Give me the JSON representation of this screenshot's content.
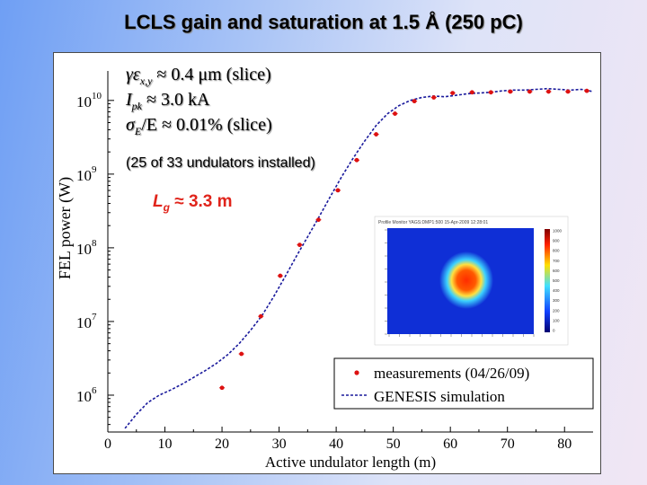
{
  "slide": {
    "title": "LCLS gain and saturation at 1.5 Å (250 pC)"
  },
  "chart_data": {
    "type": "scatter",
    "title": "LCLS gain and saturation at 1.5 Å (250 pC)",
    "xlabel": "Active undulator length (m)",
    "ylabel": "FEL power (W)",
    "xlim": [
      0,
      85
    ],
    "ylim_log10": [
      5.5,
      10.4
    ],
    "yscale": "log",
    "x_ticks": [
      "0",
      "10",
      "20",
      "30",
      "40",
      "50",
      "60",
      "70",
      "80"
    ],
    "y_ticks": [
      {
        "base": "10",
        "exp": "6"
      },
      {
        "base": "10",
        "exp": "7"
      },
      {
        "base": "10",
        "exp": "8"
      },
      {
        "base": "10",
        "exp": "9"
      },
      {
        "base": "10",
        "exp": "10"
      }
    ],
    "series": [
      {
        "name": "measurements (04/26/09)",
        "kind": "points",
        "color": "#dd1111",
        "points": [
          {
            "x": 20.0,
            "log10y": 6.1
          },
          {
            "x": 23.4,
            "log10y": 6.56
          },
          {
            "x": 26.8,
            "log10y": 7.07
          },
          {
            "x": 30.2,
            "log10y": 7.62
          },
          {
            "x": 33.6,
            "log10y": 8.04
          },
          {
            "x": 36.9,
            "log10y": 8.38
          },
          {
            "x": 40.3,
            "log10y": 8.78
          },
          {
            "x": 43.6,
            "log10y": 9.19
          },
          {
            "x": 47.0,
            "log10y": 9.54
          },
          {
            "x": 50.3,
            "log10y": 9.82
          },
          {
            "x": 53.7,
            "log10y": 9.99
          },
          {
            "x": 57.1,
            "log10y": 10.04
          },
          {
            "x": 60.4,
            "log10y": 10.1
          },
          {
            "x": 63.8,
            "log10y": 10.11
          },
          {
            "x": 67.1,
            "log10y": 10.11
          },
          {
            "x": 70.5,
            "log10y": 10.12
          },
          {
            "x": 73.9,
            "log10y": 10.12
          },
          {
            "x": 77.2,
            "log10y": 10.12
          },
          {
            "x": 80.6,
            "log10y": 10.12
          },
          {
            "x": 83.9,
            "log10y": 10.13
          }
        ]
      },
      {
        "name": "GENESIS simulation",
        "kind": "dashed-line",
        "color": "#1a1a9c",
        "points": [
          {
            "x": 3.0,
            "log10y": 5.55
          },
          {
            "x": 5.0,
            "log10y": 5.74
          },
          {
            "x": 7.0,
            "log10y": 5.9
          },
          {
            "x": 9.0,
            "log10y": 6.0
          },
          {
            "x": 11.0,
            "log10y": 6.07
          },
          {
            "x": 13.0,
            "log10y": 6.15
          },
          {
            "x": 15.0,
            "log10y": 6.24
          },
          {
            "x": 17.0,
            "log10y": 6.33
          },
          {
            "x": 19.0,
            "log10y": 6.43
          },
          {
            "x": 21.0,
            "log10y": 6.55
          },
          {
            "x": 23.0,
            "log10y": 6.7
          },
          {
            "x": 25.0,
            "log10y": 6.88
          },
          {
            "x": 27.0,
            "log10y": 7.08
          },
          {
            "x": 29.0,
            "log10y": 7.33
          },
          {
            "x": 31.0,
            "log10y": 7.6
          },
          {
            "x": 33.0,
            "log10y": 7.88
          },
          {
            "x": 35.0,
            "log10y": 8.15
          },
          {
            "x": 37.0,
            "log10y": 8.42
          },
          {
            "x": 39.0,
            "log10y": 8.7
          },
          {
            "x": 41.0,
            "log10y": 8.97
          },
          {
            "x": 43.0,
            "log10y": 9.22
          },
          {
            "x": 45.0,
            "log10y": 9.45
          },
          {
            "x": 47.0,
            "log10y": 9.66
          },
          {
            "x": 49.0,
            "log10y": 9.82
          },
          {
            "x": 51.0,
            "log10y": 9.93
          },
          {
            "x": 53.0,
            "log10y": 10.0
          },
          {
            "x": 55.0,
            "log10y": 10.04
          },
          {
            "x": 57.0,
            "log10y": 10.06
          },
          {
            "x": 59.0,
            "log10y": 10.05
          },
          {
            "x": 61.0,
            "log10y": 10.07
          },
          {
            "x": 63.0,
            "log10y": 10.09
          },
          {
            "x": 65.0,
            "log10y": 10.1
          },
          {
            "x": 67.0,
            "log10y": 10.11
          },
          {
            "x": 69.0,
            "log10y": 10.13
          },
          {
            "x": 71.0,
            "log10y": 10.14
          },
          {
            "x": 73.0,
            "log10y": 10.14
          },
          {
            "x": 75.0,
            "log10y": 10.15
          },
          {
            "x": 77.0,
            "log10y": 10.16
          },
          {
            "x": 79.0,
            "log10y": 10.15
          },
          {
            "x": 81.0,
            "log10y": 10.14
          },
          {
            "x": 83.0,
            "log10y": 10.15
          },
          {
            "x": 85.0,
            "log10y": 10.12
          }
        ]
      }
    ],
    "legend": {
      "placement": "bottom-right",
      "entries": [
        "measurements (04/26/09)",
        "GENESIS simulation"
      ]
    },
    "annotations": {
      "params": [
        {
          "sym": "γε",
          "sub": "x,y",
          "rest": " ≈ 0.4 μm (slice)"
        },
        {
          "sym": "I",
          "sub": "pk",
          "rest": " ≈ 3.0 kA"
        },
        {
          "sym": "σ",
          "sub": "E",
          "rest": "/E ≈ 0.01% (slice)"
        }
      ],
      "undulators_note": "(25 of 33 undulators installed)",
      "gain_length": {
        "sym": "L",
        "sub": "g",
        "rest": " ≈ 3.3 m"
      }
    },
    "inset": {
      "title": "Profile Monitor YAGS:DMP1:500 15-Apr-2009 12:28:01",
      "colorbar_ticks": [
        "1000",
        "900",
        "800",
        "700",
        "600",
        "500",
        "400",
        "300",
        "200",
        "100",
        "0"
      ],
      "colors": {
        "background": "#0f2fd6",
        "ring_mid": "#3cd2ff",
        "ring_warm": "#ffe040",
        "core": "#ff2c00"
      }
    }
  }
}
